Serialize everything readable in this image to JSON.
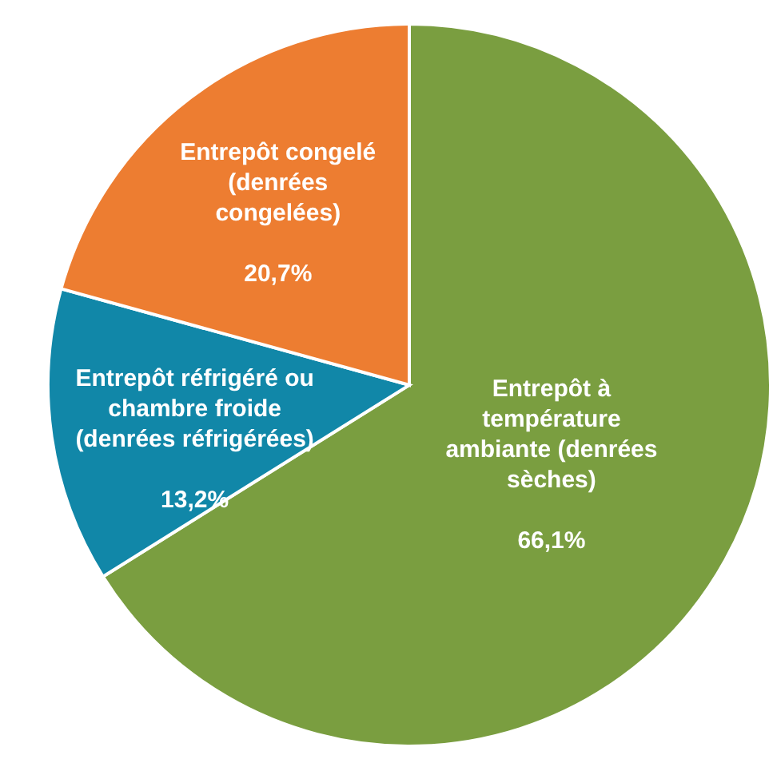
{
  "chart_data": {
    "type": "pie",
    "categories": [
      "Entrepôt à température ambiante (denrées sèches)",
      "Entrepôt réfrigéré ou chambre froide (denrées réfrigérées)",
      "Entrepôt congelé (denrées congelées)"
    ],
    "values": [
      66.1,
      13.2,
      20.7
    ],
    "value_labels": [
      "66,1%",
      "13,2%",
      "20,7%"
    ],
    "colors": [
      "#7a9e40",
      "#1187a8",
      "#ed7d31"
    ],
    "legend": false
  }
}
